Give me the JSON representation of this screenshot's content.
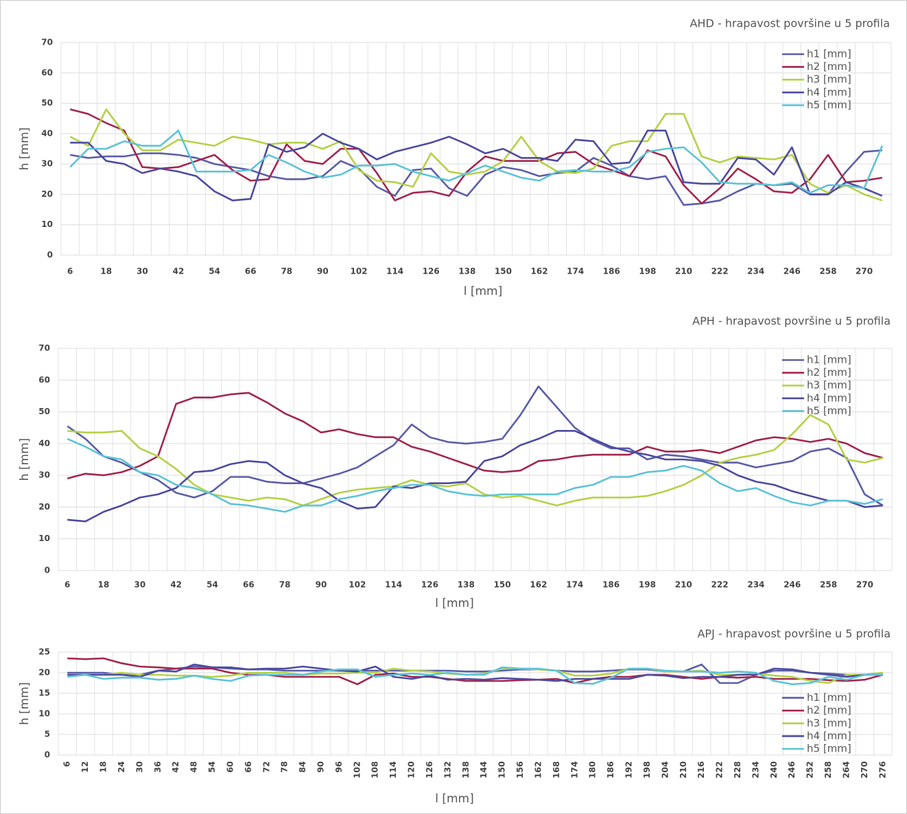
{
  "chart_data": [
    {
      "type": "line",
      "title": "AHD - hrapavost površine u 5 profila",
      "x_label": "l [mm]",
      "y_label": "h [mm]",
      "categories": [
        "6",
        null,
        "18",
        null,
        "30",
        null,
        "42",
        null,
        "54",
        null,
        "66",
        null,
        "78",
        null,
        "90",
        null,
        "102",
        null,
        "114",
        null,
        "126",
        null,
        "138",
        null,
        "150",
        null,
        "162",
        null,
        "174",
        null,
        "186",
        null,
        "198",
        null,
        "210",
        null,
        "222",
        null,
        "234",
        null,
        "246",
        null,
        "258",
        null,
        "270",
        null
      ],
      "ylim": [
        0,
        70
      ],
      "yticks": [
        0,
        10,
        20,
        30,
        40,
        50,
        60,
        70
      ],
      "grid": true,
      "legend": "upper right",
      "series": [
        {
          "name": "h1 [mm]",
          "color": "#5b5ea8",
          "values": [
            33,
            32,
            32.5,
            32.5,
            33.5,
            33.5,
            33,
            32,
            30,
            29,
            28,
            26,
            25,
            25,
            26,
            31,
            28.5,
            22.5,
            19.5,
            28,
            28.5,
            22,
            19.5,
            26.5,
            29,
            28,
            26,
            27,
            27.5,
            32,
            29.5,
            26,
            25,
            26,
            16.5,
            17,
            18,
            21,
            23.5,
            23,
            23.5,
            20,
            20,
            27.5,
            34,
            34.5
          ]
        },
        {
          "name": "h2 [mm]",
          "color": "#a2264e",
          "values": [
            48,
            46.5,
            43.5,
            41,
            29,
            28.5,
            29,
            31,
            33,
            28,
            24.5,
            25,
            36.5,
            31,
            30,
            35,
            35,
            27,
            18,
            20.5,
            21,
            19.5,
            27.5,
            32.5,
            31,
            31,
            31,
            33.5,
            34,
            30,
            28,
            26,
            34.5,
            32.5,
            23,
            17,
            22,
            28.5,
            25,
            21,
            20.5,
            25,
            33,
            24,
            24.5,
            25.5
          ]
        },
        {
          "name": "h3 [mm]",
          "color": "#b5d147",
          "values": [
            39,
            36,
            48,
            40,
            34.5,
            34.5,
            38,
            37,
            36,
            39,
            38,
            36.5,
            37,
            37,
            35,
            37.5,
            28,
            24.5,
            24,
            22.5,
            33.5,
            27.5,
            26.5,
            27.5,
            31,
            39,
            31,
            27.5,
            27,
            28.5,
            36,
            37.5,
            37.5,
            46.5,
            46.5,
            32.5,
            30.5,
            32.5,
            32,
            31.5,
            33,
            23.5,
            20.5,
            23,
            20,
            18
          ]
        },
        {
          "name": "h4 [mm]",
          "color": "#4d4b9f",
          "values": [
            37,
            37,
            31,
            30,
            27,
            28.5,
            27.5,
            26,
            21,
            18,
            18.5,
            36.5,
            34,
            35.5,
            40,
            37,
            35,
            31.5,
            34,
            35.5,
            37,
            39,
            36.5,
            33.5,
            35,
            32,
            32,
            31,
            38,
            37.5,
            30,
            30.5,
            41,
            41,
            24,
            23.5,
            23.5,
            32,
            31.5,
            26.5,
            35.5,
            20,
            20,
            24,
            22,
            19.5
          ]
        },
        {
          "name": "h5 [mm]",
          "color": "#5ec3d6",
          "values": [
            29,
            35,
            35,
            37.5,
            36,
            36,
            41,
            27.5,
            27.5,
            27.5,
            28,
            33,
            30.5,
            27.5,
            25.5,
            26.5,
            29.5,
            29.5,
            30,
            27.5,
            26,
            24.5,
            27,
            29.5,
            27.5,
            25.5,
            24.5,
            27.5,
            28,
            27.5,
            27.5,
            29,
            34,
            35,
            35.5,
            30.5,
            24,
            23.5,
            23.5,
            23,
            24,
            20.5,
            23,
            23,
            22,
            36
          ]
        }
      ]
    },
    {
      "type": "line",
      "title": "APH - hrapavost površine u 5 profila",
      "x_label": "l [mm]",
      "y_label": "h [mm]",
      "categories": [
        "6",
        null,
        "18",
        null,
        "30",
        null,
        "42",
        null,
        "54",
        null,
        "66",
        null,
        "78",
        null,
        "90",
        null,
        "102",
        null,
        "114",
        null,
        "126",
        null,
        "138",
        null,
        "150",
        null,
        "162",
        null,
        "174",
        null,
        "186",
        null,
        "198",
        null,
        "210",
        null,
        "222",
        null,
        "234",
        null,
        "246",
        null,
        "258",
        null,
        "270",
        null
      ],
      "ylim": [
        0,
        70
      ],
      "yticks": [
        0,
        10,
        20,
        30,
        40,
        50,
        60,
        70
      ],
      "grid": true,
      "legend": "upper right",
      "series": [
        {
          "name": "h1 [mm]",
          "color": "#5b5ea8",
          "values": [
            45.5,
            41.5,
            36,
            34,
            31,
            28.5,
            24.5,
            23,
            25,
            29.5,
            29.5,
            28,
            27.5,
            27.5,
            29,
            30.5,
            32.5,
            36,
            39.5,
            46,
            42,
            40.5,
            40,
            40.5,
            41.5,
            49,
            58,
            51.5,
            45,
            41,
            38.5,
            38.5,
            35,
            36.5,
            36,
            35,
            34,
            34,
            32.5,
            33.5,
            34.5,
            37.5,
            38.5,
            35.5,
            24,
            20.5
          ]
        },
        {
          "name": "h2 [mm]",
          "color": "#a2264e",
          "values": [
            29,
            30.5,
            30,
            31,
            33,
            36,
            52.5,
            54.5,
            54.5,
            55.5,
            56,
            53,
            49.5,
            47,
            43.5,
            44.5,
            43,
            42,
            42,
            39,
            37.5,
            35.5,
            33.5,
            31.5,
            31,
            31.5,
            34.5,
            35,
            36,
            36.5,
            36.5,
            36.5,
            39,
            37.5,
            37.5,
            38,
            37,
            39,
            41,
            42,
            41.5,
            40.5,
            41.5,
            40,
            37,
            35.5
          ]
        },
        {
          "name": "h3 [mm]",
          "color": "#b5d147",
          "values": [
            44,
            43.5,
            43.5,
            44,
            38.5,
            36,
            32,
            27,
            24,
            23,
            22,
            23,
            22.5,
            20.5,
            22.5,
            24.5,
            25.5,
            26,
            26.5,
            28.5,
            27,
            26.5,
            27.5,
            24,
            23,
            23.5,
            22,
            20.5,
            22,
            23,
            23,
            23,
            23.5,
            25,
            27,
            30,
            34,
            35.5,
            36.5,
            38,
            43,
            49,
            46,
            35,
            34,
            35.5
          ]
        },
        {
          "name": "h4 [mm]",
          "color": "#4d4b9f",
          "values": [
            16,
            15.5,
            18.5,
            20.5,
            23,
            24,
            26,
            31,
            31.5,
            33.5,
            34.5,
            34,
            30,
            27.5,
            26,
            22,
            19.5,
            20,
            26.5,
            26,
            27.5,
            27.5,
            28,
            34.5,
            36,
            39.5,
            41.5,
            44,
            44,
            41.5,
            39,
            37.5,
            36.5,
            35,
            35,
            34.5,
            33,
            30,
            28,
            27,
            25,
            23.5,
            22,
            22,
            20,
            20.5
          ]
        },
        {
          "name": "h5 [mm]",
          "color": "#5ec3d6",
          "values": [
            41.5,
            39,
            36,
            35,
            31,
            30,
            27,
            26,
            24,
            21,
            20.5,
            19.5,
            18.5,
            20.5,
            20.5,
            22.5,
            23.5,
            25,
            26,
            27,
            27,
            25,
            24,
            23.5,
            24,
            24,
            24,
            24,
            26,
            27,
            29.5,
            29.5,
            31,
            31.5,
            33,
            31.5,
            27.5,
            25,
            26,
            23.5,
            21.5,
            20.5,
            22,
            22,
            21,
            22.5
          ]
        }
      ]
    },
    {
      "type": "line",
      "title": "APJ - hrapavost površine u 5 profila",
      "x_label": "l [mm]",
      "y_label": "h [mm]",
      "categories": [
        "6",
        "12",
        "18",
        "24",
        "30",
        "36",
        "42",
        "48",
        "54",
        "60",
        "66",
        "72",
        "78",
        "84",
        "90",
        "96",
        "102",
        "108",
        "114",
        "120",
        "126",
        "132",
        "138",
        "144",
        "150",
        "156",
        "162",
        "168",
        "174",
        "180",
        "186",
        "192",
        "198",
        "204",
        "210",
        "216",
        "222",
        "228",
        "234",
        "240",
        "246",
        "252",
        "258",
        "264",
        "270",
        "276"
      ],
      "ylim": [
        0,
        25
      ],
      "yticks": [
        0,
        5,
        10,
        15,
        20,
        25
      ],
      "grid": true,
      "legend": "lower right",
      "series": [
        {
          "name": "h1 [mm]",
          "color": "#5b5ea8",
          "values": [
            20,
            20,
            20,
            19.5,
            19.5,
            20.5,
            21,
            21.5,
            21.3,
            21,
            20.8,
            20.8,
            20.5,
            20.5,
            20.5,
            20.5,
            20.5,
            20.5,
            20.5,
            20.5,
            20.5,
            20.5,
            20.3,
            20.3,
            20.5,
            20.8,
            20.8,
            20.5,
            20.3,
            20.3,
            20.5,
            20.8,
            20.8,
            20.3,
            20.3,
            22,
            17.5,
            17.5,
            19.5,
            20.5,
            20.5,
            20,
            19.8,
            19.5,
            19.5,
            20
          ]
        },
        {
          "name": "h2 [mm]",
          "color": "#a2264e",
          "values": [
            23.5,
            23.3,
            23.5,
            22.3,
            21.5,
            21.3,
            21,
            21,
            21,
            20,
            19.5,
            19.5,
            19,
            19,
            19,
            19,
            17.2,
            19.5,
            19.8,
            19,
            19,
            18.5,
            18,
            18,
            18,
            18.2,
            18.3,
            18.5,
            17.5,
            18.5,
            19,
            19,
            19.5,
            19.5,
            19,
            18.5,
            19,
            18.8,
            19,
            18.5,
            18.5,
            18.5,
            18.2,
            18,
            18.3,
            19.5
          ]
        },
        {
          "name": "h3 [mm]",
          "color": "#b5d147",
          "values": [
            19.5,
            19.5,
            19.5,
            20,
            19.5,
            19.5,
            19.3,
            19.3,
            19,
            19.3,
            20,
            20,
            20,
            19.5,
            19.8,
            19.8,
            20,
            20,
            21,
            20.5,
            20.3,
            19.8,
            19.5,
            19.8,
            21,
            21,
            20.8,
            20.5,
            19.3,
            19.3,
            19.8,
            21,
            21,
            20.3,
            20.3,
            20.5,
            19.5,
            19.5,
            19.8,
            19.3,
            19,
            18,
            17.5,
            19.5,
            19.5,
            20
          ]
        },
        {
          "name": "h4 [mm]",
          "color": "#4d4b9f",
          "values": [
            19.5,
            19.5,
            19.5,
            19.5,
            19,
            20.5,
            20.3,
            22,
            21.3,
            21.3,
            20.8,
            21,
            21,
            21.5,
            21,
            20.5,
            20.3,
            21.5,
            19,
            18.5,
            19.3,
            18.3,
            18.5,
            18.3,
            18.7,
            18.5,
            18.3,
            18,
            18.5,
            18.5,
            18.5,
            18.5,
            19.5,
            19.3,
            18.7,
            19,
            19,
            19.5,
            19.5,
            21,
            20.8,
            20,
            19.5,
            19,
            19.5,
            19.5
          ]
        },
        {
          "name": "h5 [mm]",
          "color": "#5ec3d6",
          "values": [
            19,
            19.5,
            18.5,
            18.8,
            18.8,
            18.3,
            18.5,
            19.3,
            18.5,
            18,
            19.3,
            19.5,
            19.5,
            19.5,
            20.3,
            20.8,
            20.8,
            19,
            19.5,
            19.8,
            19.5,
            20,
            19.5,
            19.5,
            21.3,
            21,
            21,
            20.5,
            17.5,
            17.3,
            18.8,
            21,
            21,
            20.5,
            20.3,
            20.3,
            20,
            20.3,
            20,
            18,
            17.2,
            17.5,
            19,
            18.3,
            19.5,
            19.5
          ]
        }
      ]
    }
  ]
}
